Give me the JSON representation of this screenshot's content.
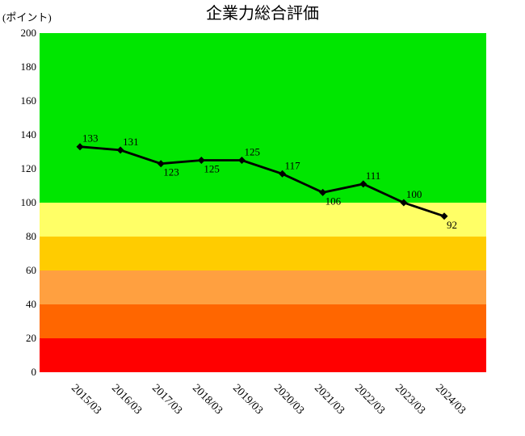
{
  "chart": {
    "title": "企業力総合評価",
    "unit_label": "(ポイント)"
  },
  "chart_data": {
    "type": "line",
    "title": "企業力総合評価",
    "ylabel": "(ポイント)",
    "xlabel": "",
    "categories": [
      "2015/03",
      "2016/03",
      "2017/03",
      "2018/03",
      "2019/03",
      "2020/03",
      "2021/03",
      "2022/03",
      "2023/03",
      "2024/03"
    ],
    "values": [
      133,
      131,
      123,
      125,
      125,
      117,
      106,
      111,
      100,
      92
    ],
    "ylim": [
      0,
      200
    ],
    "y_ticks": [
      200,
      180,
      160,
      140,
      120,
      100,
      80,
      60,
      40,
      20,
      0
    ],
    "grid": false,
    "legend": "none",
    "line_color": "#000000",
    "marker_shape": "diamond",
    "marker_color": "#000000",
    "data_label_positions": [
      "above",
      "above",
      "below",
      "below",
      "above",
      "above",
      "below",
      "above",
      "above",
      "below"
    ],
    "background_bands": [
      {
        "from": 100,
        "to": 200,
        "color": "#00E600"
      },
      {
        "from": 80,
        "to": 100,
        "color": "#FFFF66"
      },
      {
        "from": 60,
        "to": 80,
        "color": "#FFCC00"
      },
      {
        "from": 40,
        "to": 60,
        "color": "#FFA040"
      },
      {
        "from": 20,
        "to": 40,
        "color": "#FF6600"
      },
      {
        "from": 0,
        "to": 20,
        "color": "#FF0000"
      }
    ]
  }
}
